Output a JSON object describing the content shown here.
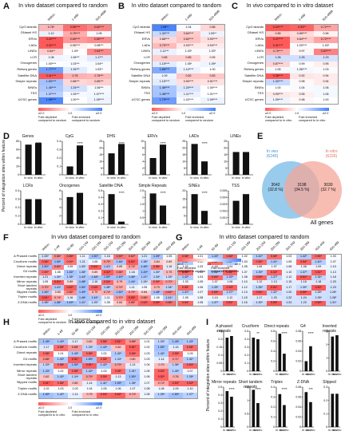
{
  "panel_labels": [
    "A",
    "B",
    "C",
    "D",
    "E",
    "F",
    "G",
    "H",
    "I"
  ],
  "titles": {
    "A": "In vivo dataset compared to random",
    "B": "In vitro dataset compared to random",
    "C": "In vivo compared to in vitro dataset",
    "F": "In vivo dataset compared to random",
    "G": "In vitro dataset compared to random",
    "H": "In vivo compared to in vitro dataset"
  },
  "features_top": [
    "CpG islands",
    "DNaseI HS",
    "ERVs",
    "LADs",
    "LINEs",
    "LCR",
    "Oncogenes",
    "Refseq genes",
    "Satellite DNA",
    "Simple repeats",
    "SINEs",
    "TSS",
    "UCSC genes"
  ],
  "cols_top": [
    "Within",
    "1-499",
    "500-4999"
  ],
  "heat_A": [
    [
      "0.78*",
      "0.56****",
      "0.62****"
    ],
    [
      "1.12",
      "0.75****",
      "1.05"
    ],
    [
      "0.42****",
      "0.69****",
      "0.65****"
    ],
    [
      "0.32****",
      "0.95****",
      "0.98***"
    ],
    [
      "0.84**",
      "1.00*",
      "0.64***"
    ],
    [
      "1.08",
      "1.06***",
      "1.17**"
    ],
    [
      "1.00****",
      "1.03***",
      "1.04**"
    ],
    [
      "1.77****",
      "1.16***",
      "1.03**"
    ],
    [
      "0.41****",
      "0.76",
      "0.78***"
    ],
    [
      "1.50****",
      "0.88***",
      "0.85***"
    ],
    [
      "1.45****",
      "1.24***",
      "1.06***"
    ],
    [
      "1.37****",
      "1.05***",
      "1.07****"
    ],
    [
      "1.95****",
      "1.00***",
      "1.09****"
    ]
  ],
  "heat_B": [
    [
      "1.98**",
      "1.04",
      "0.88"
    ],
    [
      "1.30****",
      "0.84****",
      "1.09**"
    ],
    [
      "0.88****",
      "0.82****",
      "0.90****"
    ],
    [
      "0.79****",
      "0.93****",
      "0.94****"
    ],
    [
      "1.11***",
      "1.03*",
      "1.03*"
    ],
    [
      "0.85",
      "0.85",
      "0.95"
    ],
    [
      "1.15****",
      "1.05*",
      "1.09*"
    ],
    [
      "1.68****",
      "1.10****",
      "1.00"
    ],
    [
      "1.09",
      "0.82",
      "0.83"
    ],
    [
      "1.15****",
      "0.90****",
      "0.91****"
    ],
    [
      "1.46****",
      "1.20****",
      "1.00****"
    ],
    [
      "1.48****",
      "1.11****",
      "1.01****"
    ],
    [
      "1.79****",
      "1.02****",
      "1.09****"
    ]
  ],
  "heat_C": [
    [
      "0.34****",
      "0.53**",
      "0.72****"
    ],
    [
      "0.85",
      "0.89****",
      "0.96"
    ],
    [
      "0.47****",
      "0.84****",
      "0.72****"
    ],
    [
      "0.41****",
      "1.03****",
      "1.03*"
    ],
    [
      "0.75****",
      "0.97",
      "0.62****"
    ],
    [
      "1.26",
      "1.25",
      "1.23"
    ],
    [
      "0.87****",
      "0.99",
      "0.95"
    ],
    [
      "1.05",
      "1.06****",
      "1.03"
    ],
    [
      "0.38****",
      "0.92",
      "0.94"
    ],
    [
      "1.30****",
      "0.98",
      "0.94"
    ],
    [
      "1.00",
      "1.04",
      "1.06"
    ],
    [
      "0.93****",
      "0.95",
      "1.06"
    ],
    [
      "1.09****",
      "0.98",
      "1.00"
    ]
  ],
  "legend_top": {
    "low": "≥2.0",
    "mid": "1.0",
    "high": "≥2.0",
    "left_text": "Fold depleted compared to random",
    "right_text": "Fold enriched compared to random",
    "left_text_C": "Fold depleted compared to in vitro",
    "right_text_C": "Fold enriched compared to in vitro"
  },
  "D": {
    "ylabel": "Percent of integration sites within feature",
    "xlabels": [
      "In vivo",
      "In vitro"
    ],
    "charts": [
      {
        "title": "Genes",
        "ymax": 80,
        "ticks": [
          0,
          20,
          40,
          60,
          80
        ],
        "values": [
          72,
          76
        ],
        "sig": "****"
      },
      {
        "title": "CpG",
        "ymax": 0.4,
        "ticks": [
          0,
          0.1,
          0.2,
          0.3,
          0.4
        ],
        "values": [
          0.1,
          0.35
        ],
        "sig": "****"
      },
      {
        "title": "DHS",
        "ymax": 25,
        "ticks": [
          0,
          5,
          10,
          15,
          20,
          25
        ],
        "values": [
          16,
          23
        ],
        "sig": "****"
      },
      {
        "title": "ERVs",
        "ymax": 10,
        "ticks": [
          0,
          2,
          4,
          6,
          8,
          10
        ],
        "values": [
          5,
          9
        ],
        "sig": "****"
      },
      {
        "title": "LADs",
        "ymax": 25,
        "ticks": [
          0,
          5,
          10,
          15,
          20,
          25
        ],
        "values": [
          23,
          10
        ],
        "sig": "****"
      },
      {
        "title": "LINEs",
        "ymax": 25,
        "ticks": [
          0,
          5,
          10,
          15,
          20,
          25
        ],
        "values": [
          17,
          17
        ],
        "sig": ""
      },
      {
        "title": "LCRs",
        "ymax": 0.4,
        "ticks": [
          0,
          0.1,
          0.2,
          0.3,
          0.4
        ],
        "values": [
          0.3,
          0.3
        ],
        "sig": ""
      },
      {
        "title": "Oncogenes",
        "ymax": 8,
        "ticks": [
          0,
          2,
          4,
          6,
          8
        ],
        "values": [
          6.5,
          7.5
        ],
        "sig": ""
      },
      {
        "title": "Satellite DNA",
        "ymax": 0.5,
        "ticks": [
          0,
          0.1,
          0.2,
          0.3,
          0.4,
          0.5
        ],
        "values": [
          0.45,
          0.04
        ],
        "sig": "****"
      },
      {
        "title": "Simple Repeats",
        "ymax": 2.5,
        "ticks": [
          0,
          0.5,
          1,
          1.5,
          2,
          2.5
        ],
        "values": [
          2.3,
          1.4
        ],
        "sig": "****"
      },
      {
        "title": "SINEs",
        "ymax": 20,
        "ticks": [
          0,
          5,
          10,
          15,
          20
        ],
        "values": [
          18,
          8
        ],
        "sig": "****"
      },
      {
        "title": "TSS",
        "ymax": 0.005,
        "ticks": [
          0,
          0.001,
          0.002,
          0.003,
          0.004,
          0.005
        ],
        "values": [
          0.0035,
          0.0045
        ],
        "sig": ""
      }
    ]
  },
  "E": {
    "in_vivo_label": "In vivo",
    "in_vivo_count": "(6240)",
    "in_vitro_label": "In vitro",
    "in_vitro_count": "(6226)",
    "left": "3042",
    "left_pct": "(32.8 %)",
    "center": "3198",
    "center_pct": "(34.5 %)",
    "right": "3030",
    "right_pct": "(32.7 %)",
    "footer": "All genes",
    "colors": {
      "vivo": "#8ec5ea",
      "vitro": "#f4a79a",
      "overlap": "#c9a3a9"
    }
  },
  "motifs": [
    "A Phased motifs",
    "Cruciform motifs",
    "Direct repeats",
    "G4 motifs",
    "Inverted repeats",
    "Mirror repeats",
    "Short tandem repeats",
    "Slipped motifs",
    "Triplex motifs",
    "Z-DNA motifs"
  ],
  "cols_motif": [
    "Within",
    "1-49",
    "50-99",
    "100-149",
    "150-199",
    "200-249",
    "250-299",
    "300-349",
    "350-399",
    "400-449",
    "450-499"
  ],
  "legend_motif": {
    "low": "≥2.0",
    "mid": "1.0",
    "high": "≥2.0",
    "left_text": "Fold depleted compared to random",
    "right_text": "Fold enriched compared to random",
    "left_text_H": "Fold depleted compared to in vitro",
    "right_text_H": "Fold enriched compared to in vitro"
  },
  "I": {
    "ylabel": "Percent of integration sites within feature",
    "xlabels": [
      "In vivo",
      "In vitro"
    ],
    "charts": [
      {
        "title": "A phased repeats",
        "ymax": 0.25,
        "ticks": [
          0,
          0.05,
          0.1,
          0.15,
          0.2,
          0.25
        ],
        "values": [
          0.21,
          0.22
        ],
        "sig": ""
      },
      {
        "title": "Cruciform",
        "ymax": 0.5,
        "ticks": [
          0,
          0.1,
          0.2,
          0.3,
          0.4,
          0.5
        ],
        "values": [
          0.42,
          0.4
        ],
        "sig": "**"
      },
      {
        "title": "Direct repeats",
        "ymax": 0.8,
        "ticks": [
          0,
          0.2,
          0.4,
          0.6,
          0.8
        ],
        "values": [
          0.75,
          0.35
        ],
        "sig": "****"
      },
      {
        "title": "G4",
        "ymax": 0.08,
        "ticks": [
          0,
          0.02,
          0.04,
          0.06,
          0.08
        ],
        "values": [
          0.02,
          0.05
        ],
        "sig": "****"
      },
      {
        "title": "Inverted repeats",
        "ymax": 3,
        "ticks": [
          0,
          1,
          2,
          3
        ],
        "values": [
          2.6,
          2.7
        ],
        "sig": ""
      },
      {
        "title": "Mirror repeats",
        "ymax": 0.5,
        "ticks": [
          0,
          0.1,
          0.2,
          0.3,
          0.4,
          0.5
        ],
        "values": [
          0.45,
          0.38
        ],
        "sig": "****"
      },
      {
        "title": "Short tandem repeats",
        "ymax": 1.5,
        "ticks": [
          0,
          0.5,
          1,
          1.5
        ],
        "values": [
          1.4,
          0.9
        ],
        "sig": "****"
      },
      {
        "title": "Triplex",
        "ymax": 0.4,
        "ticks": [
          0,
          0.1,
          0.2,
          0.3,
          0.4
        ],
        "values": [
          0.33,
          0.22
        ],
        "sig": "****"
      },
      {
        "title": "Z-DNA",
        "ymax": 0.08,
        "ticks": [
          0,
          0.02,
          0.04,
          0.06,
          0.08
        ],
        "values": [
          0.07,
          0.05
        ],
        "sig": "***"
      },
      {
        "title": "Slipped",
        "ymax": 0.3,
        "ticks": [
          0,
          0.1,
          0.2,
          0.3
        ],
        "values": [
          0.25,
          0.25
        ],
        "sig": ""
      }
    ]
  }
}
